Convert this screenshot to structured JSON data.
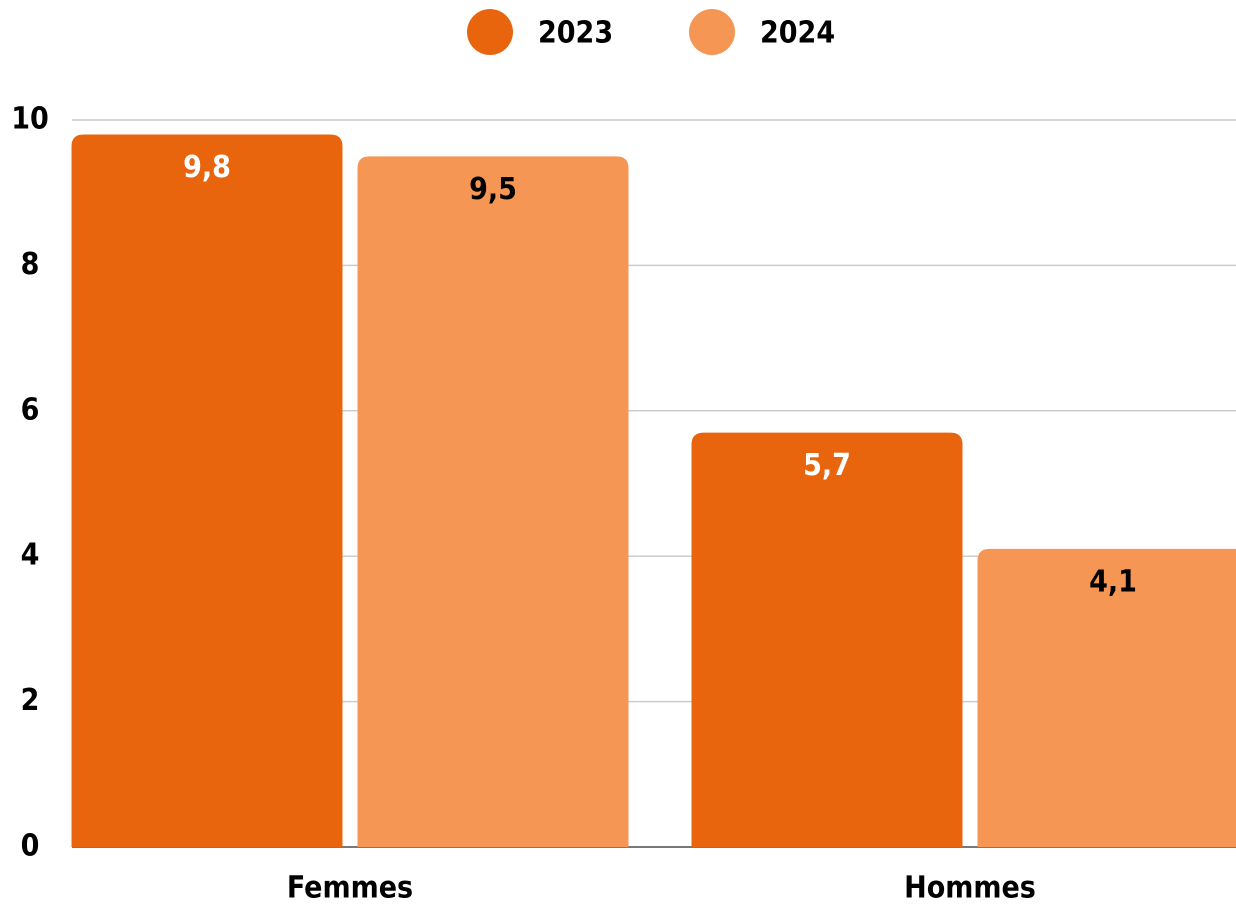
{
  "chart_data": {
    "type": "bar",
    "categories": [
      "Femmes",
      "Hommes"
    ],
    "series": [
      {
        "name": "2023",
        "color": "#e8650e",
        "values": [
          9.8,
          5.7
        ],
        "value_labels": [
          "9,8",
          "5,7"
        ],
        "label_color": "#ffffff"
      },
      {
        "name": "2024",
        "color": "#f59654",
        "values": [
          9.5,
          4.1
        ],
        "value_labels": [
          "9,5",
          "4,1"
        ],
        "label_color": "#000000"
      }
    ],
    "ylim": [
      0,
      10
    ],
    "yticks": [
      0,
      2,
      4,
      6,
      8,
      10
    ],
    "grid": true,
    "legend": "top"
  }
}
